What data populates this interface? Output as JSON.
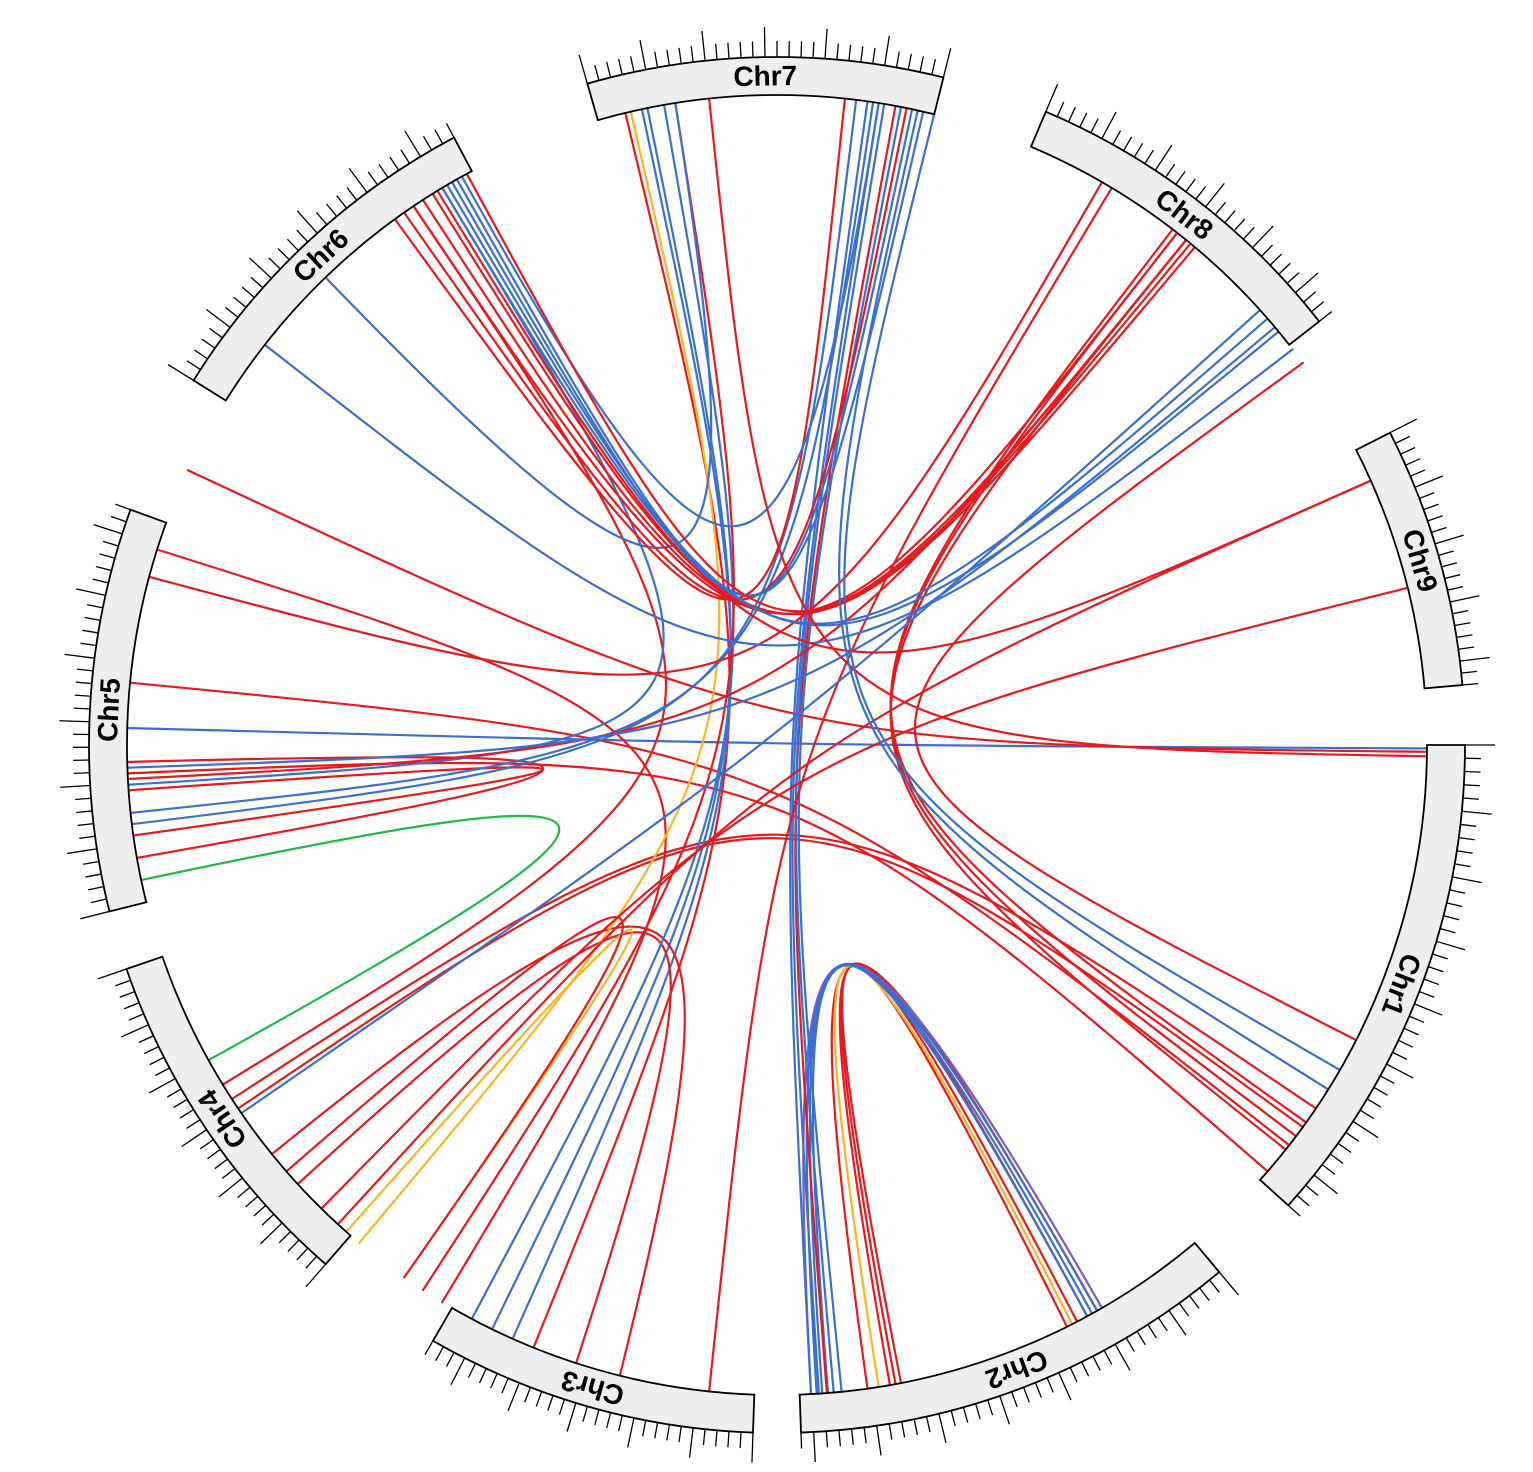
{
  "diagram": {
    "type": "circos",
    "colors": {
      "red": "#e8191c",
      "blue": "#3b6fcf",
      "orange": "#fbb425",
      "green": "#1fb944",
      "purple": "#7d5bbf"
    },
    "chromosomes": [
      {
        "id": "chr1",
        "label": "Chr1",
        "start_deg": 0,
        "end_deg": 42,
        "ticks": 38
      },
      {
        "id": "chr2",
        "label": "Chr2",
        "start_deg": 50,
        "end_deg": 88,
        "ticks": 36
      },
      {
        "id": "chr3",
        "label": "Chr3",
        "start_deg": 92,
        "end_deg": 120,
        "ticks": 28
      },
      {
        "id": "chr4",
        "label": "Chr4",
        "start_deg": 131,
        "end_deg": 161,
        "ticks": 30
      },
      {
        "id": "chr5",
        "label": "Chr5",
        "start_deg": 166,
        "end_deg": 200,
        "ticks": 32
      },
      {
        "id": "chr6",
        "label": "Chr6",
        "start_deg": 212,
        "end_deg": 242,
        "ticks": 28
      },
      {
        "id": "chr7",
        "label": "Chr7",
        "start_deg": 254,
        "end_deg": 284,
        "ticks": 30
      },
      {
        "id": "chr8",
        "label": "Chr8",
        "start_deg": 293,
        "end_deg": 322,
        "ticks": 28
      },
      {
        "id": "chr9",
        "label": "Chr9",
        "start_deg": 333,
        "end_deg": 355,
        "ticks": 22
      }
    ],
    "links": [
      {
        "a": 0.3,
        "b": 181.5,
        "color": "blue"
      },
      {
        "a": 0.6,
        "b": 205.0,
        "color": "red"
      },
      {
        "a": 35.5,
        "b": 307.5,
        "color": "red"
      },
      {
        "a": 37.0,
        "b": 308.0,
        "color": "red"
      },
      {
        "a": 38.5,
        "b": 309.0,
        "color": "red"
      },
      {
        "a": 34.0,
        "b": 147.0,
        "color": "red"
      },
      {
        "a": 36.0,
        "b": 146.0,
        "color": "red"
      },
      {
        "a": 38.0,
        "b": 185.5,
        "color": "red"
      },
      {
        "a": 41.0,
        "b": 177.5,
        "color": "red"
      },
      {
        "a": 60.5,
        "b": 82.0,
        "color": "red"
      },
      {
        "a": 61.5,
        "b": 80.0,
        "color": "red"
      },
      {
        "a": 62.5,
        "b": 79.5,
        "color": "red"
      },
      {
        "a": 63.5,
        "b": 79.0,
        "color": "red"
      },
      {
        "a": 63.0,
        "b": 81.0,
        "color": "orange"
      },
      {
        "a": 60.0,
        "b": 87.0,
        "color": "purple"
      },
      {
        "a": 60.5,
        "b": 86.5,
        "color": "blue"
      },
      {
        "a": 61.0,
        "b": 86.0,
        "color": "blue"
      },
      {
        "a": 61.5,
        "b": 85.5,
        "color": "blue"
      },
      {
        "a": 87.0,
        "b": 278.0,
        "color": "blue"
      },
      {
        "a": 86.3,
        "b": 279.0,
        "color": "blue"
      },
      {
        "a": 85.6,
        "b": 280.5,
        "color": "red"
      },
      {
        "a": 85.0,
        "b": 279.5,
        "color": "blue"
      },
      {
        "a": 84.3,
        "b": 281.0,
        "color": "blue"
      },
      {
        "a": 96.0,
        "b": 301.0,
        "color": "red"
      },
      {
        "a": 112.0,
        "b": 256.5,
        "color": "red"
      },
      {
        "a": 114.0,
        "b": 258.0,
        "color": "blue"
      },
      {
        "a": 116.0,
        "b": 258.5,
        "color": "blue"
      },
      {
        "a": 104.0,
        "b": 141.0,
        "color": "red"
      },
      {
        "a": 108.0,
        "b": 137.5,
        "color": "red"
      },
      {
        "a": 118.0,
        "b": 260.0,
        "color": "blue"
      },
      {
        "a": 125.0,
        "b": 131.5,
        "color": "orange"
      },
      {
        "a": 125.0,
        "b": 139.0,
        "color": "red"
      },
      {
        "a": 123.0,
        "b": 261.0,
        "color": "red"
      },
      {
        "a": 121.0,
        "b": 197.5,
        "color": "red"
      },
      {
        "a": 130.0,
        "b": 257.0,
        "color": "orange"
      },
      {
        "a": 132.5,
        "b": 336.0,
        "color": "red"
      },
      {
        "a": 134.5,
        "b": 346.0,
        "color": "red"
      },
      {
        "a": 148.5,
        "b": 236.0,
        "color": "red"
      },
      {
        "a": 145.5,
        "b": 318.0,
        "color": "blue"
      },
      {
        "a": 151.0,
        "b": 168.0,
        "color": "green"
      },
      {
        "a": 170.0,
        "b": 178.5,
        "color": "red"
      },
      {
        "a": 172.0,
        "b": 176.0,
        "color": "red"
      },
      {
        "a": 176.5,
        "b": 239.0,
        "color": "blue"
      },
      {
        "a": 173.0,
        "b": 277.0,
        "color": "blue"
      },
      {
        "a": 174.0,
        "b": 278.5,
        "color": "blue"
      },
      {
        "a": 177.0,
        "b": 309.0,
        "color": "red"
      },
      {
        "a": 195.0,
        "b": 300.0,
        "color": "red"
      },
      {
        "a": 178.0,
        "b": 320.0,
        "color": "blue"
      },
      {
        "a": 218.0,
        "b": 322.5,
        "color": "blue"
      },
      {
        "a": 226.0,
        "b": 261.0,
        "color": "blue"
      },
      {
        "a": 234.0,
        "b": 276.0,
        "color": "red"
      },
      {
        "a": 235.0,
        "b": 281.5,
        "color": "red"
      },
      {
        "a": 236.0,
        "b": 308.0,
        "color": "red"
      },
      {
        "a": 237.0,
        "b": 309.0,
        "color": "red"
      },
      {
        "a": 238.0,
        "b": 310.0,
        "color": "red"
      },
      {
        "a": 238.5,
        "b": 336.0,
        "color": "red"
      },
      {
        "a": 239.0,
        "b": 319.0,
        "color": "blue"
      },
      {
        "a": 240.0,
        "b": 282.0,
        "color": "blue"
      },
      {
        "a": 240.5,
        "b": 283.0,
        "color": "blue"
      },
      {
        "a": 241.0,
        "b": 279.0,
        "color": "blue"
      },
      {
        "a": 241.5,
        "b": 309.5,
        "color": "red"
      },
      {
        "a": 239.5,
        "b": 320.5,
        "color": "blue"
      },
      {
        "a": 264.0,
        "b": 1.0,
        "color": "red"
      },
      {
        "a": 282.5,
        "b": 32.0,
        "color": "blue"
      },
      {
        "a": 324.0,
        "b": 27.0,
        "color": "red"
      },
      {
        "a": 284.0,
        "b": 30.0,
        "color": "blue"
      }
    ]
  }
}
